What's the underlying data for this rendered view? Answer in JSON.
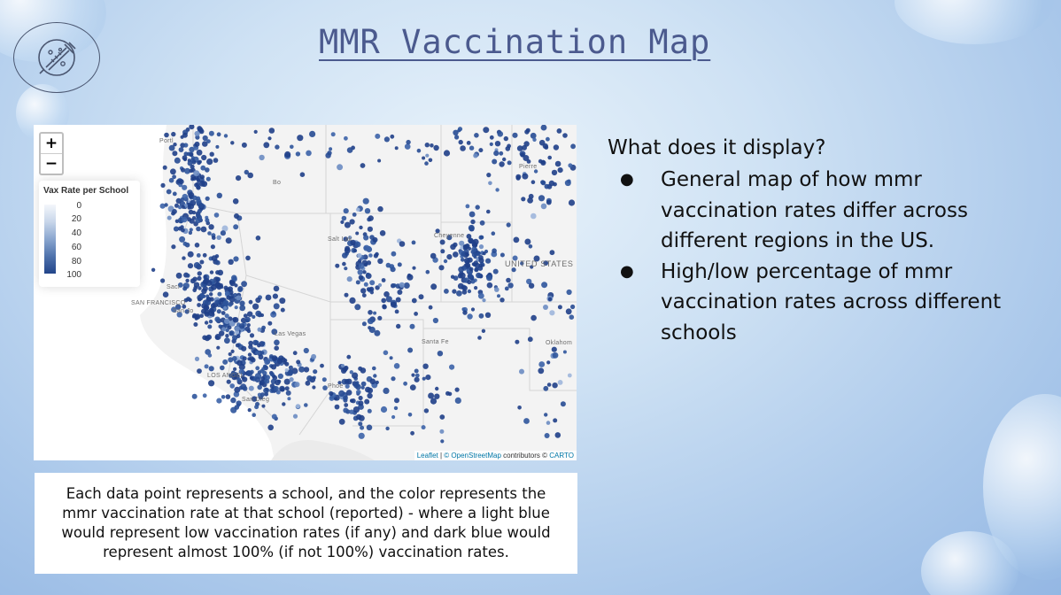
{
  "slide": {
    "title": "MMR Vaccination Map",
    "question": "What does it display?",
    "bullets": [
      "General map of how mmr vaccination rates differ across different regions in the US.",
      "High/low percentage of mmr vaccination rates across different schools"
    ],
    "caption": "Each data point represents a school, and the color represents the mmr vaccination rate at that school (reported) - where a light blue would represent low vaccination rates (if any) and dark blue would represent almost 100% (if not 100%) vaccination rates."
  },
  "map": {
    "zoom_in": "+",
    "zoom_out": "−",
    "legend": {
      "title": "Vax Rate per School",
      "ticks": [
        "0",
        "20",
        "40",
        "60",
        "80",
        "100"
      ],
      "color_low": "#f4f7fb",
      "color_high": "#22458a"
    },
    "labels": {
      "portland": "Portl",
      "boise": "Bo",
      "salt_lake": "Salt Lak",
      "cheyenne": "Cheyenne",
      "united_states": "UNITED STATES",
      "pierre": "Pierre",
      "sacramento": "Sacr",
      "san_francisco": "SAN FRANCISCO",
      "san_jose": "San Jo",
      "las_vegas": "Las Vegas",
      "santa_fe": "Santa Fe",
      "oklahoma": "Oklahom",
      "los_angeles": "LOS ANGEL",
      "phoenix": "Phoe",
      "san_diego": "San Dieg"
    },
    "attribution": {
      "leaflet": "Leaflet",
      "osm": "© OpenStreetMap",
      "contributors": "contributors ©",
      "carto": "CARTO"
    },
    "point_color": "#1f3f88"
  }
}
